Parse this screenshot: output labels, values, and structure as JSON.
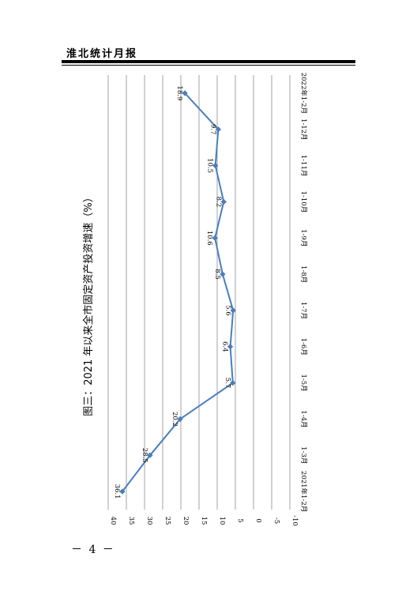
{
  "header": {
    "title": "淮北统计月报"
  },
  "page_number": "－ 4 －",
  "chart_data": {
    "type": "line",
    "title": "图三：2021 年以来全市固定资产投资增速（%）",
    "categories": [
      "2021年1-2月",
      "1-3月",
      "1-4月",
      "1-5月",
      "1-6月",
      "1-7月",
      "1-8月",
      "1-9月",
      "1-10月",
      "1-11月",
      "1-12月",
      "2022年1-2月"
    ],
    "series": [
      {
        "values": [
          36.1,
          28.5,
          20.2,
          5.7,
          6.4,
          5.6,
          8.5,
          10.6,
          8.2,
          10.5,
          9.7,
          18.9
        ]
      }
    ],
    "data_labels": [
      "36.1",
      "28.5",
      "20.2",
      "5.7",
      "6.4",
      "5.6",
      "8.5",
      "10.6",
      "8.2",
      "10.5",
      "9.7",
      "18.9"
    ],
    "yticks": [
      "40",
      "35",
      "30",
      "25",
      "20",
      "15",
      "10",
      "5",
      "0",
      "-5",
      "-10"
    ],
    "ylim": [
      -10,
      40
    ],
    "grid": true,
    "line_color": "#4a7ebb",
    "orientation": "rotated-90"
  }
}
